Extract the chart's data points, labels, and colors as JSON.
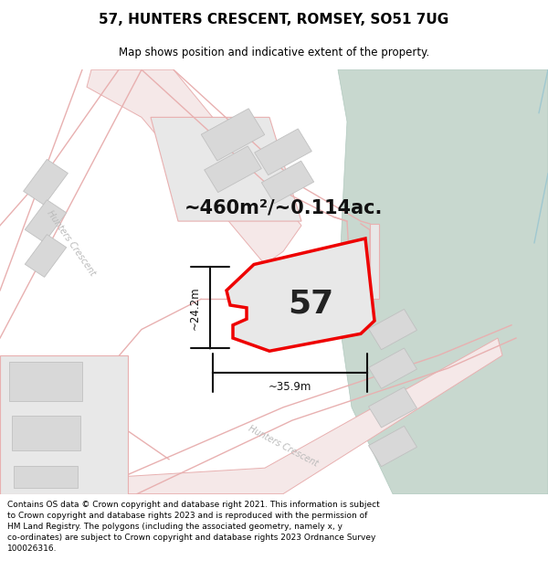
{
  "title": "57, HUNTERS CRESCENT, ROMSEY, SO51 7UG",
  "subtitle": "Map shows position and indicative extent of the property.",
  "footer": "Contains OS data © Crown copyright and database right 2021. This information is subject\nto Crown copyright and database rights 2023 and is reproduced with the permission of\nHM Land Registry. The polygons (including the associated geometry, namely x, y\nco-ordinates) are subject to Crown copyright and database rights 2023 Ordnance Survey\n100026316.",
  "area_text": "~460m²/~0.114ac.",
  "width_label": "~35.9m",
  "height_label": "~24.2m",
  "property_number": "57",
  "map_bg": "#ffffff",
  "green_color": "#c8d8cf",
  "green_edge": "#b0c8be",
  "road_fill": "#f5e8e8",
  "road_edge": "#e8b0b0",
  "block_fill": "#e8e8e8",
  "block_edge": "#e0a0a0",
  "building_fill": "#d8d8d8",
  "building_edge": "#c0c0c0",
  "prop_fill": "#e8e8e8",
  "prop_edge": "#ee0000",
  "road_label_color": "#bbbbbb",
  "dim_color": "#111111",
  "title_fontsize": 11,
  "subtitle_fontsize": 8.5,
  "footer_fontsize": 6.5,
  "area_fontsize": 15,
  "number_fontsize": 26
}
